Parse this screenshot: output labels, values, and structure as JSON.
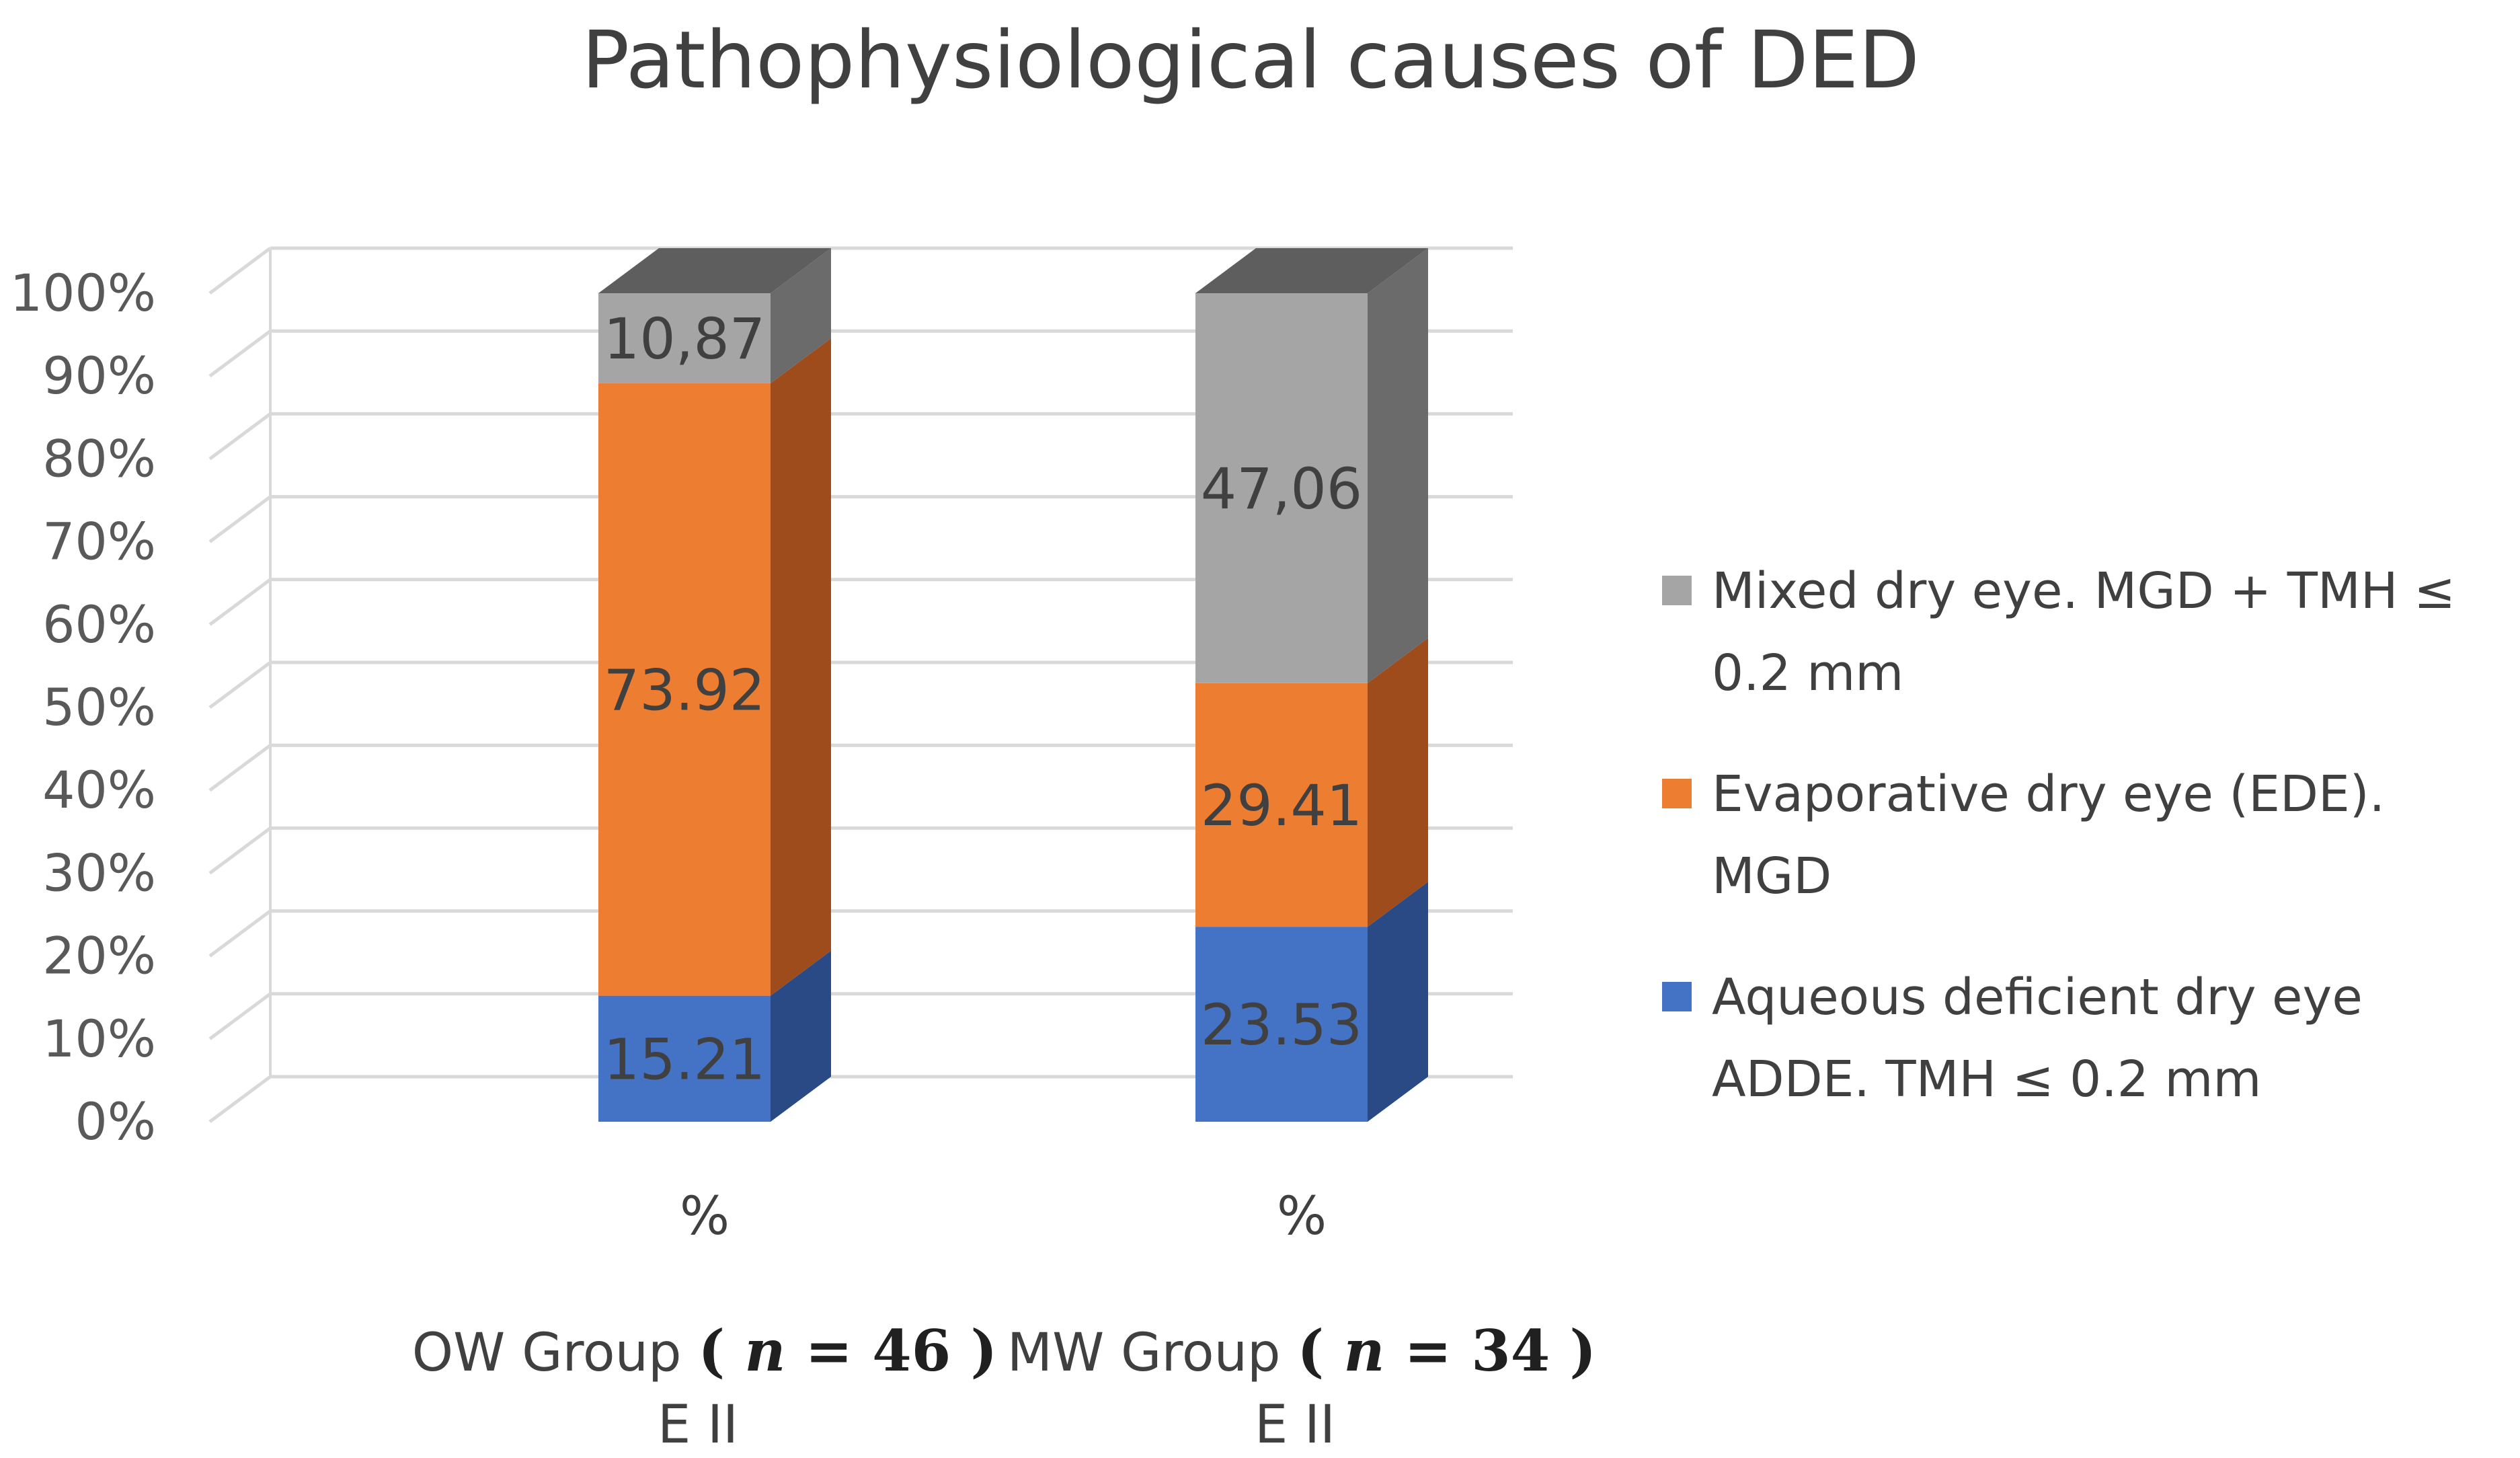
{
  "chart_data": {
    "type": "bar",
    "stacked": true,
    "style": "3d-stacked-column-100-percent",
    "title": "Pathophysiological causes of DED",
    "categories": [
      {
        "label": "%",
        "group": "OW Group",
        "n": "46",
        "sub": "E II"
      },
      {
        "label": "%",
        "group": "MW Group",
        "n": "34",
        "sub": "E II"
      }
    ],
    "n_symbol": "n",
    "y_ticks": [
      "0%",
      "10%",
      "20%",
      "30%",
      "40%",
      "50%",
      "60%",
      "70%",
      "80%",
      "90%",
      "100%"
    ],
    "ylim": [
      0,
      100
    ],
    "legend_position": "right",
    "series": [
      {
        "name": "Aqueous deficient dry eye ADDE. TMH ≤ 0.2 mm",
        "legend_lines": [
          "Aqueous deficient dry eye",
          "ADDE. TMH ≤ 0.2 mm"
        ],
        "values": [
          15.21,
          23.53
        ],
        "labels": [
          "15.21",
          "23.53"
        ],
        "color": "#4472C4",
        "side_color": "#2A4A86",
        "top_color": "#3A63AE"
      },
      {
        "name": "Evaporative dry eye (EDE). MGD",
        "legend_lines": [
          "Evaporative dry eye (EDE).",
          "MGD"
        ],
        "values": [
          73.92,
          29.41
        ],
        "labels": [
          "73.92",
          "29.41"
        ],
        "color": "#ED7D31",
        "side_color": "#9E4C1C",
        "top_color": "#C8621F"
      },
      {
        "name": "Mixed dry eye. MGD + TMH ≤ 0.2 mm",
        "legend_lines": [
          "Mixed dry eye. MGD + TMH ≤",
          "0.2 mm"
        ],
        "values": [
          10.87,
          47.06
        ],
        "labels": [
          "10,87",
          "47,06"
        ],
        "color": "#A5A5A5",
        "side_color": "#6B6B6B",
        "top_color": "#5E5E5E"
      }
    ],
    "gridlines": true,
    "grid_color": "#D9D9D9"
  }
}
